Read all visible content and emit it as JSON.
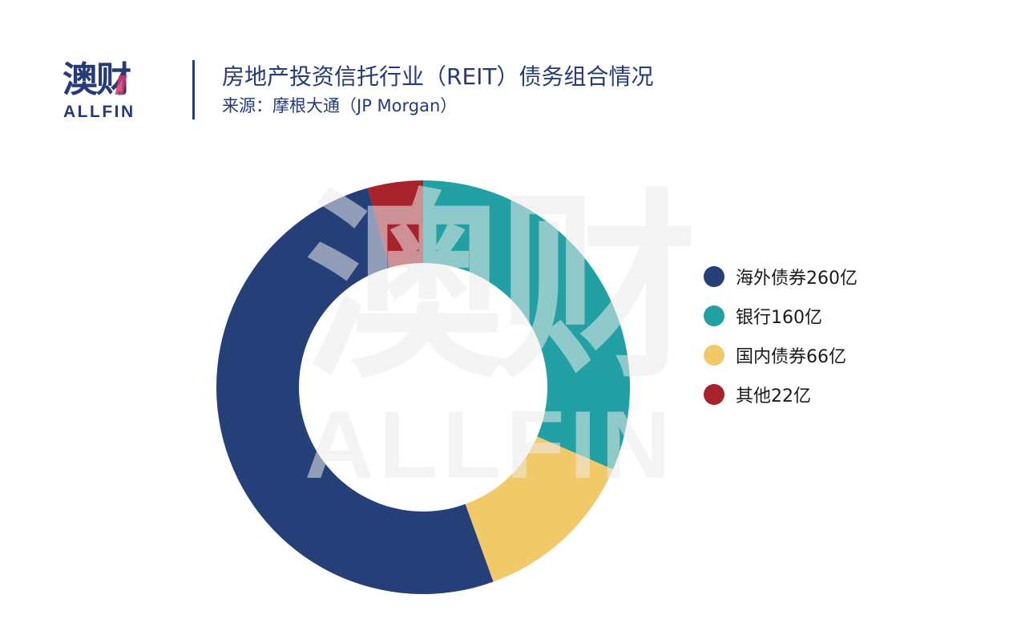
{
  "header": {
    "logo_cn": "澳财",
    "logo_en": "ALLFIN",
    "title": "房地产投资信托行业（REIT）债务组合情况",
    "subtitle": "来源：摩根大通（JP Morgan）"
  },
  "watermark": {
    "cn": "澳财",
    "en": "ALLFIN"
  },
  "legend": [
    {
      "label": "海外债券260亿",
      "color": "#253f78"
    },
    {
      "label": "银行160亿",
      "color": "#22a0a3"
    },
    {
      "label": "国内债券66亿",
      "color": "#f2c968"
    },
    {
      "label": "其他22亿",
      "color": "#a8222b"
    }
  ],
  "chart_data": {
    "type": "pie",
    "subtype": "donut",
    "title": "房地产投资信托行业（REIT）债务组合情况",
    "subtitle": "来源：摩根大通（JP Morgan）",
    "unit": "亿",
    "categories": [
      "海外债券",
      "银行",
      "国内债券",
      "其他"
    ],
    "values": [
      260,
      160,
      66,
      22
    ],
    "colors": [
      "#253f78",
      "#22a0a3",
      "#f2c968",
      "#a8222b"
    ],
    "legend_position": "right",
    "start_angle_deg": 0,
    "direction": "clockwise",
    "draw_order": [
      "银行",
      "国内债券",
      "海外债券",
      "其他"
    ]
  }
}
